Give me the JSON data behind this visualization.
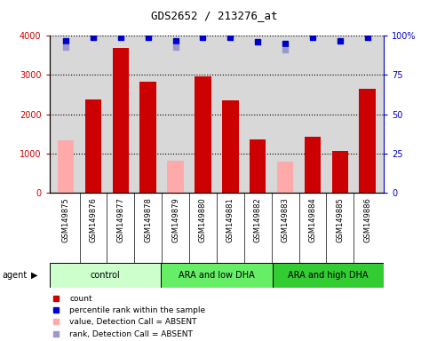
{
  "title": "GDS2652 / 213276_at",
  "samples": [
    "GSM149875",
    "GSM149876",
    "GSM149877",
    "GSM149878",
    "GSM149879",
    "GSM149880",
    "GSM149881",
    "GSM149882",
    "GSM149883",
    "GSM149884",
    "GSM149885",
    "GSM149886"
  ],
  "count_values": [
    null,
    2380,
    3680,
    2820,
    null,
    2960,
    2360,
    1360,
    null,
    1420,
    1060,
    2640
  ],
  "absent_values": [
    1330,
    null,
    null,
    null,
    820,
    null,
    null,
    null,
    790,
    null,
    null,
    null
  ],
  "percentile_rank": [
    97,
    99,
    99,
    99,
    97,
    99,
    99,
    96,
    95,
    99,
    97,
    99
  ],
  "absent_rank": [
    93,
    null,
    null,
    null,
    93,
    null,
    null,
    null,
    91,
    null,
    null,
    null
  ],
  "groups": [
    {
      "label": "control",
      "start": 0,
      "end": 3,
      "color": "#ccffcc"
    },
    {
      "label": "ARA and low DHA",
      "start": 4,
      "end": 7,
      "color": "#66ee66"
    },
    {
      "label": "ARA and high DHA",
      "start": 8,
      "end": 11,
      "color": "#33cc33"
    }
  ],
  "ylim_left": [
    0,
    4000
  ],
  "ylim_right": [
    0,
    100
  ],
  "yticks_left": [
    0,
    1000,
    2000,
    3000,
    4000
  ],
  "ytick_labels_left": [
    "0",
    "1000",
    "2000",
    "3000",
    "4000"
  ],
  "yticks_right": [
    0,
    25,
    50,
    75,
    100
  ],
  "ytick_labels_right": [
    "0",
    "25",
    "50",
    "75",
    "100%"
  ],
  "bar_color_count": "#cc0000",
  "bar_color_absent": "#ffaaaa",
  "dot_color_rank": "#0000cc",
  "dot_color_absent_rank": "#9999cc",
  "bg_color": "#d8d8d8",
  "white_bg": "#ffffff",
  "agent_label": "agent",
  "legend_items": [
    {
      "color": "#cc0000",
      "label": "count"
    },
    {
      "color": "#0000cc",
      "label": "percentile rank within the sample"
    },
    {
      "color": "#ffaaaa",
      "label": "value, Detection Call = ABSENT"
    },
    {
      "color": "#9999cc",
      "label": "rank, Detection Call = ABSENT"
    }
  ]
}
